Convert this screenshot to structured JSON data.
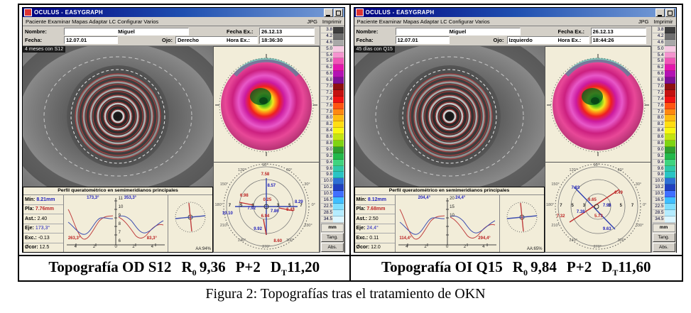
{
  "app_title": "OCULUS  -  EASYGRAPH",
  "menu": {
    "items": [
      "Paciente",
      "Examinar",
      "Mapas",
      "Adaptar LC",
      "Configurar",
      "Varios"
    ],
    "right": [
      "JPG",
      "Imprimir"
    ]
  },
  "form_labels": {
    "nombre": "Nombre:",
    "fecha": "Fecha:",
    "ojo": "Ojo:",
    "fecha_ex": "Fecha Ex.:",
    "hora_ex": "Hora Ex.:"
  },
  "color_scale": {
    "unit": "mm",
    "btn_tang": "Tang.",
    "btn_abs": "Abs.",
    "rows": [
      {
        "v": "3.8",
        "c": "#3d3d3d"
      },
      {
        "v": "4.2",
        "c": "#6f6f6f"
      },
      {
        "v": "4.6",
        "c": "#a8a8a8"
      },
      {
        "v": "5.0",
        "c": "#f7c9e3"
      },
      {
        "v": "5.4",
        "c": "#f494cf"
      },
      {
        "v": "5.8",
        "c": "#f055b7"
      },
      {
        "v": "6.2",
        "c": "#e317ad"
      },
      {
        "v": "6.6",
        "c": "#b312b3"
      },
      {
        "v": "6.8",
        "c": "#7d1096"
      },
      {
        "v": "7.0",
        "c": "#8f1010"
      },
      {
        "v": "7.2",
        "c": "#c31111"
      },
      {
        "v": "7.4",
        "c": "#ee1212"
      },
      {
        "v": "7.6",
        "c": "#ff5512"
      },
      {
        "v": "7.8",
        "c": "#ff8812"
      },
      {
        "v": "8.0",
        "c": "#ffbb12"
      },
      {
        "v": "8.2",
        "c": "#ffdd12"
      },
      {
        "v": "8.4",
        "c": "#f7f712"
      },
      {
        "v": "8.6",
        "c": "#c2e512"
      },
      {
        "v": "8.8",
        "c": "#7fd412"
      },
      {
        "v": "9.0",
        "c": "#2f9e2f"
      },
      {
        "v": "9.2",
        "c": "#23b84b"
      },
      {
        "v": "9.4",
        "c": "#3fd47f"
      },
      {
        "v": "9.6",
        "c": "#2fc9a9"
      },
      {
        "v": "9.8",
        "c": "#2ac4c4"
      },
      {
        "v": "10.0",
        "c": "#2f6fd4"
      },
      {
        "v": "10.2",
        "c": "#2040bf"
      },
      {
        "v": "10.5",
        "c": "#4070ff"
      },
      {
        "v": "16.5",
        "c": "#40bfff"
      },
      {
        "v": "22.5",
        "c": "#80dfff"
      },
      {
        "v": "28.5",
        "c": "#b5ecff"
      },
      {
        "v": "34.5",
        "c": "#ddf6ff"
      }
    ]
  },
  "polar_common": {
    "angles": [
      "90°",
      "60°",
      "30°",
      "0°",
      "330°",
      "300°",
      "270°",
      "240°",
      "210°",
      "180°",
      "150°",
      "120°"
    ],
    "rings": [
      "7",
      "5",
      "3",
      "3",
      "5",
      "7"
    ]
  },
  "windows": {
    "left": {
      "form": {
        "nombre": "Miguel",
        "fecha": "12.07.01",
        "ojo": "Derecho",
        "fecha_ex": "26.12.13",
        "hora_ex": "18:36:30"
      },
      "photo_note": "4 meses con S12",
      "profile": {
        "title": "Perfil queratométrico en semimeridianos principales",
        "stats": [
          {
            "label": "Mín:",
            "value": "8.21mm"
          },
          {
            "label": "Pla:",
            "value": "7.76mm"
          },
          {
            "label": "Ast.:",
            "value": "2.40"
          },
          {
            "label": "Eje:",
            "value": "173,3°"
          },
          {
            "label": "Exc.:",
            "value": "-0.13"
          },
          {
            "label": "Øcor:",
            "value": "12.5"
          }
        ],
        "ang_tl": "173,3°",
        "ang_tr": "353,3°",
        "ang_bl": "263,3°",
        "ang_br": "83,3°",
        "yticks": {
          "t1": "11",
          "t2": "10",
          "t3": "9",
          "t4": "8",
          "t5": "7",
          "t6": "6"
        },
        "xticks": {
          "t1": "4",
          "t2": "2",
          "t3": "0",
          "t4": "2",
          "t5": "4"
        },
        "aa": "AA:94%"
      },
      "polar": {
        "ann": {
          "a1": "7.58",
          "a2": "8.57",
          "a3": "6.98",
          "a4": "0.25",
          "a5": "7.92",
          "a6": "7.86",
          "a7": "8.29",
          "a8": "8.43",
          "a9": "10.10",
          "a10": "6.94",
          "a11": "9.92",
          "a12": "8.60"
        }
      },
      "caption": {
        "pre": "Topografía OD S12",
        "r": "R",
        "r_sub": "0",
        "r_val": "9,36",
        "p": "P+2",
        "d": "D",
        "d_sub": "T",
        "d_val": "11,20"
      }
    },
    "right": {
      "form": {
        "nombre": "Miguel",
        "fecha": "12.07.01",
        "ojo": "Izquierdo",
        "fecha_ex": "26.12.13",
        "hora_ex": "18:44:26"
      },
      "photo_note": "45 días con Q15",
      "profile": {
        "title": "Perfil queratométrico en semimeridianos principales",
        "stats": [
          {
            "label": "Mín:",
            "value": "8.12mm"
          },
          {
            "label": "Pla:",
            "value": "7.68mm"
          },
          {
            "label": "Ast.:",
            "value": "2.50"
          },
          {
            "label": "Eje:",
            "value": "24,4°"
          },
          {
            "label": "Exc.:",
            "value": "0.11"
          },
          {
            "label": "Øcor:",
            "value": "12.0"
          }
        ],
        "ang_tl": "204,4°",
        "ang_tr": "24,4°",
        "ang_bl": "114,4°",
        "ang_br": "294,4°",
        "yticks": {
          "t1": "20",
          "t2": "15",
          "t3": "10"
        },
        "xticks": {
          "t1": "4",
          "t2": "2",
          "t3": "0",
          "t4": "2",
          "t5": "4"
        },
        "aa": "AA:65%"
      },
      "polar": {
        "ann": {
          "a1": "7.83",
          "a2": "6.49",
          "a3": "6.65",
          "a4": "7.93",
          "a5": "7.38",
          "a6": "5.73",
          "a7": "7.32",
          "a8": "9.63"
        }
      },
      "caption": {
        "pre": "Topografía OI Q15",
        "r": "R",
        "r_sub": "0",
        "r_val": "9,84",
        "p": "P+2",
        "d": "D",
        "d_sub": "T",
        "d_val": "11,60"
      }
    }
  },
  "figure": {
    "caption": "Figura 2: Topografías tras el tratamiento de OKN"
  }
}
